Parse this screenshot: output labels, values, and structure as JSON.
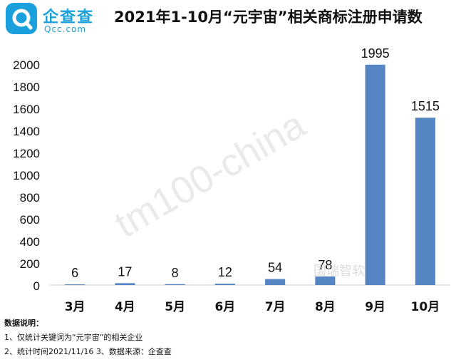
{
  "logo": {
    "name": "企查查",
    "domain": "Qcc.com"
  },
  "watermarks": [
    "tm100-china",
    "国瑞智软"
  ],
  "notes": {
    "title": "数据说明：",
    "line1": "1、仅统计关键词为“元宇宙”的相关企业",
    "line2": "2、统计时间2021/11/16  3、数据来源：企查查"
  },
  "colors": {
    "bar": "#5585c2",
    "brand": "#1aa0dc"
  },
  "chart_data": {
    "type": "bar",
    "title": "2021年1-10月“元宇宙”相关商标注册申请数",
    "categories": [
      "3月",
      "4月",
      "5月",
      "6月",
      "7月",
      "8月",
      "9月",
      "10月"
    ],
    "values": [
      6,
      17,
      8,
      12,
      54,
      78,
      1995,
      1515
    ],
    "ylim": [
      0,
      2000
    ],
    "yticks": [
      0,
      200,
      400,
      600,
      800,
      1000,
      1200,
      1400,
      1600,
      1800,
      2000
    ],
    "xlabel": "",
    "ylabel": "",
    "grid": false
  }
}
